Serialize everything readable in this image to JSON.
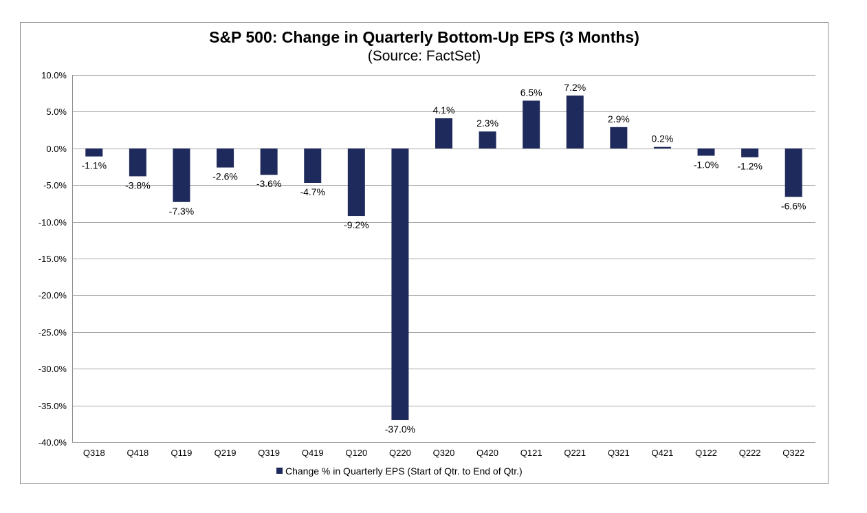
{
  "chart_data": {
    "type": "bar",
    "title": "S&P 500: Change in Quarterly Bottom-Up EPS (3 Months)",
    "subtitle": "(Source: FactSet)",
    "xlabel": "",
    "ylabel": "",
    "ylim": [
      -40,
      10
    ],
    "ytick_values": [
      10,
      5,
      0,
      -5,
      -10,
      -15,
      -20,
      -25,
      -30,
      -35,
      -40
    ],
    "ytick_labels": [
      "10.0%",
      "5.0%",
      "0.0%",
      "-5.0%",
      "-10.0%",
      "-15.0%",
      "-20.0%",
      "-25.0%",
      "-30.0%",
      "-35.0%",
      "-40.0%"
    ],
    "grid": true,
    "legend_position": "bottom",
    "categories": [
      "Q318",
      "Q418",
      "Q119",
      "Q219",
      "Q319",
      "Q419",
      "Q120",
      "Q220",
      "Q320",
      "Q420",
      "Q121",
      "Q221",
      "Q321",
      "Q421",
      "Q122",
      "Q222",
      "Q322"
    ],
    "series": [
      {
        "name": "Change % in Quarterly EPS (Start of Qtr. to End of Qtr.)",
        "color": "#1f2a5c",
        "values": [
          -1.1,
          -3.8,
          -7.3,
          -2.6,
          -3.6,
          -4.7,
          -9.2,
          -37.0,
          4.1,
          2.3,
          6.5,
          7.2,
          2.9,
          0.2,
          -1.0,
          -1.2,
          -6.6
        ],
        "labels": [
          "-1.1%",
          "-3.8%",
          "-7.3%",
          "-2.6%",
          "-3.6%",
          "-4.7%",
          "-9.2%",
          "-37.0%",
          "4.1%",
          "2.3%",
          "6.5%",
          "7.2%",
          "2.9%",
          "0.2%",
          "-1.0%",
          "-1.2%",
          "-6.6%"
        ]
      }
    ]
  }
}
